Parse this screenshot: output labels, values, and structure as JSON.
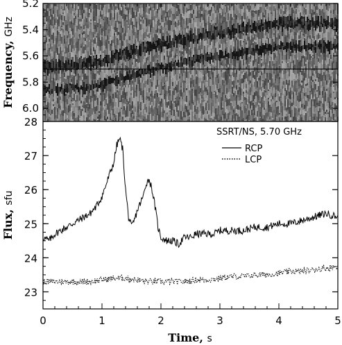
{
  "chart_data": [
    {
      "type": "heatmap",
      "panel": "spectrogram",
      "ylabel": "Frequency",
      "yunit": "GHz",
      "y_ticks": [
        "5.2",
        "5.4",
        "5.6",
        "5.8",
        "6.0"
      ],
      "ylim": [
        5.2,
        6.1
      ],
      "y_inverted": true,
      "xlim": [
        0,
        5
      ],
      "marker_frequency_ghz": 5.7,
      "bright_band_centers": [
        {
          "t": 0.0,
          "f": 5.66
        },
        {
          "t": 0.5,
          "f": 5.65
        },
        {
          "t": 1.0,
          "f": 5.62
        },
        {
          "t": 1.5,
          "f": 5.55
        },
        {
          "t": 2.0,
          "f": 5.49
        },
        {
          "t": 2.5,
          "f": 5.44
        },
        {
          "t": 3.0,
          "f": 5.4
        },
        {
          "t": 3.5,
          "f": 5.37
        },
        {
          "t": 4.0,
          "f": 5.33
        }
      ]
    },
    {
      "type": "line",
      "panel": "flux",
      "legend_title": "SSRT/NS, 5.70 GHz",
      "xlabel": "Time",
      "xunit": "s",
      "ylabel": "Flux",
      "yunit": "sfu",
      "xlim": [
        0,
        5
      ],
      "ylim": [
        22.5,
        28.0
      ],
      "x_ticks": [
        "0",
        "1",
        "2",
        "3",
        "4",
        "5"
      ],
      "y_ticks": [
        "23",
        "24",
        "25",
        "26",
        "27",
        "28"
      ],
      "legend_position": "top-right",
      "series": [
        {
          "name": "RCP",
          "style": "solid",
          "points": [
            [
              0.0,
              24.6
            ],
            [
              0.1,
              24.5
            ],
            [
              0.2,
              24.7
            ],
            [
              0.3,
              24.8
            ],
            [
              0.4,
              24.9
            ],
            [
              0.5,
              25.0
            ],
            [
              0.6,
              25.1
            ],
            [
              0.7,
              25.2
            ],
            [
              0.8,
              25.3
            ],
            [
              0.9,
              25.5
            ],
            [
              1.0,
              25.8
            ],
            [
              1.1,
              26.3
            ],
            [
              1.2,
              26.8
            ],
            [
              1.25,
              27.3
            ],
            [
              1.3,
              27.5
            ],
            [
              1.35,
              27.2
            ],
            [
              1.4,
              26.0
            ],
            [
              1.45,
              25.2
            ],
            [
              1.5,
              24.9
            ],
            [
              1.55,
              25.1
            ],
            [
              1.6,
              25.4
            ],
            [
              1.7,
              25.8
            ],
            [
              1.75,
              26.2
            ],
            [
              1.8,
              26.3
            ],
            [
              1.85,
              26.0
            ],
            [
              1.9,
              25.5
            ],
            [
              1.95,
              24.9
            ],
            [
              2.0,
              24.6
            ],
            [
              2.1,
              24.5
            ],
            [
              2.2,
              24.5
            ],
            [
              2.3,
              24.4
            ],
            [
              2.4,
              24.6
            ],
            [
              2.5,
              24.6
            ],
            [
              2.6,
              24.7
            ],
            [
              2.7,
              24.7
            ],
            [
              2.8,
              24.7
            ],
            [
              2.9,
              24.7
            ],
            [
              3.0,
              24.8
            ],
            [
              3.2,
              24.8
            ],
            [
              3.4,
              24.8
            ],
            [
              3.6,
              24.9
            ],
            [
              3.8,
              24.9
            ],
            [
              4.0,
              25.0
            ],
            [
              4.2,
              25.0
            ],
            [
              4.4,
              25.1
            ],
            [
              4.6,
              25.2
            ],
            [
              4.8,
              25.3
            ],
            [
              5.0,
              25.2
            ]
          ]
        },
        {
          "name": "LCP",
          "style": "dotted",
          "points": [
            [
              0.0,
              23.3
            ],
            [
              0.2,
              23.3
            ],
            [
              0.4,
              23.3
            ],
            [
              0.6,
              23.3
            ],
            [
              0.8,
              23.3
            ],
            [
              1.0,
              23.35
            ],
            [
              1.2,
              23.4
            ],
            [
              1.4,
              23.4
            ],
            [
              1.6,
              23.35
            ],
            [
              1.8,
              23.3
            ],
            [
              2.0,
              23.3
            ],
            [
              2.2,
              23.3
            ],
            [
              2.4,
              23.3
            ],
            [
              2.6,
              23.35
            ],
            [
              2.8,
              23.35
            ],
            [
              3.0,
              23.4
            ],
            [
              3.2,
              23.45
            ],
            [
              3.4,
              23.45
            ],
            [
              3.6,
              23.5
            ],
            [
              3.8,
              23.5
            ],
            [
              4.0,
              23.55
            ],
            [
              4.2,
              23.6
            ],
            [
              4.4,
              23.6
            ],
            [
              4.6,
              23.65
            ],
            [
              4.8,
              23.7
            ],
            [
              5.0,
              23.75
            ]
          ]
        }
      ]
    }
  ]
}
